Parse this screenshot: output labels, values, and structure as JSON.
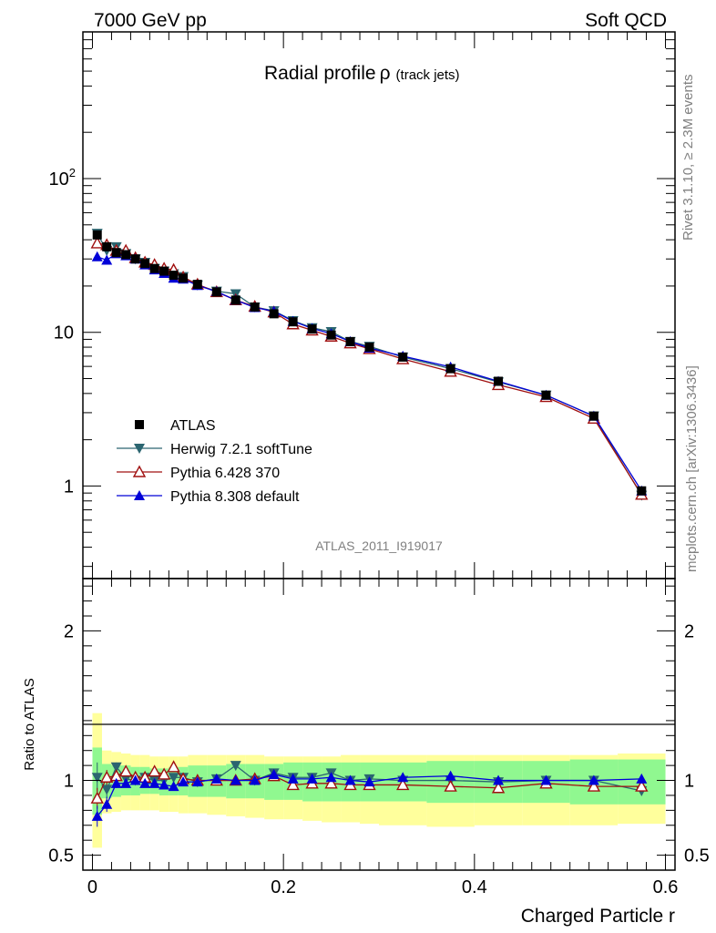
{
  "header": {
    "left": "7000 GeV pp",
    "right": "Soft QCD"
  },
  "side_labels": {
    "rivet": "Rivet 3.1.10, ≥ 2.3M events",
    "mcplots": "mcplots.cern.ch [arXiv:1306.3436]"
  },
  "plot_title": {
    "main": "Radial profile",
    "rho": "ρ",
    "sub": "(track jets)"
  },
  "analysis_id": "ATLAS_2011_I919017",
  "chart_data": [
    {
      "type": "line",
      "panel": "main",
      "yscale": "log",
      "xlim": [
        -0.01,
        0.61
      ],
      "ylim": [
        0.25,
        900
      ],
      "y_ticks": [
        {
          "value": 1,
          "label": "1"
        },
        {
          "value": 10,
          "label": "10"
        },
        {
          "value": 100,
          "label": "10",
          "sup": "2"
        }
      ],
      "legend_position": "lower-left",
      "x": [
        0.005,
        0.015,
        0.025,
        0.035,
        0.045,
        0.055,
        0.065,
        0.075,
        0.085,
        0.095,
        0.11,
        0.13,
        0.15,
        0.17,
        0.19,
        0.21,
        0.23,
        0.25,
        0.27,
        0.29,
        0.325,
        0.375,
        0.425,
        0.475,
        0.525,
        0.575
      ],
      "series": [
        {
          "name": "ATLAS",
          "color": "#000000",
          "marker": "square",
          "values": [
            43,
            36,
            33,
            32,
            30,
            28,
            26,
            25,
            23.5,
            22.5,
            20.5,
            18.3,
            16.2,
            14.6,
            13.2,
            11.7,
            10.5,
            9.6,
            8.7,
            8.0,
            6.9,
            5.8,
            4.8,
            3.9,
            2.85,
            0.93
          ]
        },
        {
          "name": "Herwig 7.2.1 softTune",
          "color": "#2b6570",
          "marker": "triangle-down",
          "values": [
            44,
            34,
            36,
            32.5,
            30,
            28.5,
            26,
            25,
            24,
            23,
            20.3,
            18.5,
            17.8,
            14.6,
            13.8,
            11.9,
            10.7,
            10.1,
            8.7,
            8.1,
            6.9,
            5.8,
            4.75,
            3.9,
            2.85,
            0.87
          ]
        },
        {
          "name": "Pythia 6.428 370",
          "color": "#a01010",
          "marker": "triangle-up-open",
          "values": [
            38,
            37,
            34,
            34,
            30.5,
            28.5,
            27.5,
            26,
            25.5,
            22.8,
            20.5,
            18.3,
            16.2,
            14.7,
            13.5,
            11.3,
            10.3,
            9.4,
            8.5,
            7.8,
            6.7,
            5.55,
            4.55,
            3.8,
            2.75,
            0.88
          ]
        },
        {
          "name": "Pythia 8.308 default",
          "color": "#0000d8",
          "marker": "triangle-up",
          "values": [
            31,
            29.5,
            32.5,
            31.5,
            30,
            27.5,
            25.5,
            24.2,
            22.5,
            22.2,
            20.2,
            18.4,
            16.2,
            14.5,
            13.7,
            11.8,
            10.6,
            9.8,
            8.7,
            7.9,
            7.0,
            5.95,
            4.8,
            3.9,
            2.85,
            0.93
          ]
        }
      ]
    },
    {
      "type": "line",
      "panel": "ratio",
      "ylabel": "Ratio to ATLAS",
      "xlabel": "Charged Particle r",
      "xlim": [
        -0.01,
        0.61
      ],
      "ylim": [
        0.4,
        2.35
      ],
      "y_ticks": [
        {
          "value": 0.5,
          "label": "0.5"
        },
        {
          "value": 1,
          "label": "1"
        },
        {
          "value": 2,
          "label": "2"
        }
      ],
      "x_ticks": [
        {
          "value": 0,
          "label": "0"
        },
        {
          "value": 0.2,
          "label": "0.2"
        },
        {
          "value": 0.4,
          "label": "0.4"
        },
        {
          "value": 0.6,
          "label": "0.6"
        }
      ],
      "bin_edges": [
        0,
        0.01,
        0.02,
        0.03,
        0.04,
        0.05,
        0.06,
        0.07,
        0.08,
        0.09,
        0.1,
        0.12,
        0.14,
        0.16,
        0.18,
        0.2,
        0.22,
        0.24,
        0.26,
        0.28,
        0.3,
        0.35,
        0.4,
        0.45,
        0.5,
        0.55,
        0.6
      ],
      "band_inner": {
        "color": "#90f890",
        "lo": [
          0.77,
          0.88,
          0.89,
          0.9,
          0.9,
          0.91,
          0.91,
          0.9,
          0.9,
          0.9,
          0.89,
          0.89,
          0.88,
          0.88,
          0.87,
          0.87,
          0.86,
          0.86,
          0.86,
          0.86,
          0.86,
          0.85,
          0.85,
          0.85,
          0.84,
          0.84
        ],
        "hi": [
          1.22,
          1.11,
          1.1,
          1.1,
          1.09,
          1.09,
          1.08,
          1.08,
          1.09,
          1.09,
          1.1,
          1.1,
          1.11,
          1.11,
          1.11,
          1.12,
          1.12,
          1.12,
          1.12,
          1.12,
          1.12,
          1.13,
          1.13,
          1.13,
          1.14,
          1.14
        ]
      },
      "band_outer": {
        "color": "#ffff9c",
        "lo": [
          0.55,
          0.78,
          0.79,
          0.8,
          0.8,
          0.8,
          0.8,
          0.79,
          0.79,
          0.78,
          0.78,
          0.77,
          0.76,
          0.75,
          0.74,
          0.74,
          0.73,
          0.72,
          0.72,
          0.71,
          0.7,
          0.69,
          0.7,
          0.7,
          0.7,
          0.71
        ],
        "hi": [
          1.45,
          1.2,
          1.19,
          1.18,
          1.17,
          1.17,
          1.16,
          1.16,
          1.16,
          1.16,
          1.17,
          1.17,
          1.17,
          1.17,
          1.16,
          1.16,
          1.16,
          1.16,
          1.17,
          1.17,
          1.17,
          1.17,
          1.17,
          1.17,
          1.17,
          1.18
        ]
      },
      "x": [
        0.005,
        0.015,
        0.025,
        0.035,
        0.045,
        0.055,
        0.065,
        0.075,
        0.085,
        0.095,
        0.11,
        0.13,
        0.15,
        0.17,
        0.19,
        0.21,
        0.23,
        0.25,
        0.27,
        0.29,
        0.325,
        0.375,
        0.425,
        0.475,
        0.525,
        0.575
      ],
      "series": [
        {
          "name": "Herwig 7.2.1 softTune",
          "color": "#2b6570",
          "marker": "triangle-down",
          "values": [
            1.02,
            0.94,
            1.09,
            1.01,
            1.0,
            1.02,
            1.0,
            1.0,
            1.02,
            1.02,
            0.99,
            1.01,
            1.1,
            1.0,
            1.05,
            1.02,
            1.02,
            1.05,
            1.0,
            1.01,
            1.0,
            1.0,
            0.99,
            1.0,
            1.0,
            0.93
          ],
          "err": [
            0.1,
            0.06,
            0.03,
            0.02,
            0.02,
            0.02,
            0.02,
            0.02,
            0.02,
            0.02,
            0.01,
            0.01,
            0.01,
            0.01,
            0.01,
            0.01,
            0.01,
            0.01,
            0.01,
            0.01,
            0.01,
            0.01,
            0.01,
            0.01,
            0.01,
            0.03
          ]
        },
        {
          "name": "Pythia 6.428 370",
          "color": "#a01010",
          "marker": "triangle-up-open",
          "values": [
            0.88,
            1.02,
            1.03,
            1.06,
            1.02,
            1.02,
            1.06,
            1.04,
            1.09,
            1.01,
            1.0,
            1.0,
            1.0,
            1.01,
            1.03,
            0.97,
            0.98,
            0.98,
            0.97,
            0.97,
            0.97,
            0.96,
            0.95,
            0.98,
            0.96,
            0.96
          ],
          "err": [
            0.07,
            0.05,
            0.03,
            0.02,
            0.02,
            0.02,
            0.02,
            0.02,
            0.02,
            0.02,
            0.01,
            0.01,
            0.01,
            0.01,
            0.01,
            0.01,
            0.01,
            0.01,
            0.01,
            0.01,
            0.01,
            0.01,
            0.01,
            0.01,
            0.01,
            0.03
          ]
        },
        {
          "name": "Pythia 8.308 default",
          "color": "#0000d8",
          "marker": "triangle-up",
          "values": [
            0.76,
            0.84,
            0.98,
            0.98,
            1.0,
            0.98,
            0.98,
            0.97,
            0.96,
            0.99,
            0.99,
            1.01,
            1.0,
            1.0,
            1.04,
            1.01,
            1.01,
            1.02,
            1.0,
            0.99,
            1.02,
            1.03,
            1.0,
            1.0,
            1.0,
            1.01
          ],
          "err": [
            0.07,
            0.05,
            0.03,
            0.02,
            0.02,
            0.02,
            0.02,
            0.02,
            0.02,
            0.02,
            0.01,
            0.01,
            0.01,
            0.01,
            0.01,
            0.01,
            0.01,
            0.01,
            0.01,
            0.01,
            0.01,
            0.01,
            0.01,
            0.01,
            0.01,
            0.03
          ]
        }
      ]
    }
  ]
}
